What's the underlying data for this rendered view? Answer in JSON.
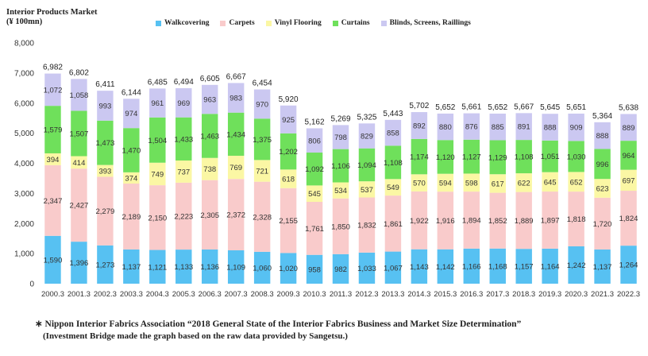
{
  "caption": {
    "line1": "Interior Products Market",
    "line2": "(¥ 100mn)"
  },
  "note": {
    "line1": "∗ Nippon Interior Fabrics Association “2018 General State of the Interior Fabrics Business and Market Size Determination”",
    "line2": "(Investment Bridge made the graph based on the raw data provided by Sangetsu.)"
  },
  "colors": {
    "Walkcovering": "#57c1f2",
    "Carpets": "#f9cbcb",
    "Vinyl Flooring": "#fbf7a4",
    "Curtains": "#6fe05b",
    "Blinds, Screens, Raillings": "#cbc8f1"
  },
  "chart_data": {
    "type": "bar",
    "stacked": true,
    "legend_position": "top",
    "grid": false,
    "ylim": [
      0,
      8000
    ],
    "yticks": [
      "0",
      "1,000",
      "2,000",
      "3,000",
      "4,000",
      "5,000",
      "6,000",
      "7,000",
      "8,000"
    ],
    "categories": [
      "2000.3",
      "2001.3",
      "2002.3",
      "2003.3",
      "2004.3",
      "2005.3",
      "2006.3",
      "2007.3",
      "2008.3",
      "2009.3",
      "2010.3",
      "2011.3",
      "2012.3",
      "2013.3",
      "2014.3",
      "2015.3",
      "2016.3",
      "2017.3",
      "2018.3",
      "2019.3",
      "2020.3",
      "2021.3",
      "2022.3"
    ],
    "totals": [
      6982,
      6802,
      6411,
      6144,
      6485,
      6494,
      6605,
      6667,
      6454,
      5920,
      5162,
      5269,
      5325,
      5443,
      5702,
      5652,
      5661,
      5652,
      5667,
      5645,
      5651,
      5364,
      5638
    ],
    "series": [
      {
        "name": "Walkcovering",
        "values": [
          1590,
          1396,
          1273,
          1137,
          1121,
          1133,
          1136,
          1109,
          1060,
          1020,
          958,
          982,
          1033,
          1067,
          1143,
          1142,
          1166,
          1168,
          1157,
          1164,
          1242,
          1137,
          1264
        ]
      },
      {
        "name": "Carpets",
        "values": [
          2347,
          2427,
          2279,
          2189,
          2150,
          2223,
          2305,
          2372,
          2328,
          2155,
          1761,
          1850,
          1832,
          1861,
          1922,
          1916,
          1894,
          1852,
          1889,
          1897,
          1818,
          1720,
          1824
        ]
      },
      {
        "name": "Vinyl Flooring",
        "values": [
          394,
          414,
          393,
          374,
          749,
          737,
          738,
          769,
          721,
          618,
          545,
          534,
          537,
          549,
          570,
          594,
          598,
          617,
          622,
          645,
          652,
          623,
          697
        ]
      },
      {
        "name": "Curtains",
        "values": [
          1579,
          1507,
          1473,
          1470,
          1504,
          1433,
          1463,
          1434,
          1375,
          1202,
          1092,
          1106,
          1094,
          1108,
          1174,
          1120,
          1127,
          1129,
          1108,
          1051,
          1030,
          996,
          964
        ]
      },
      {
        "name": "Blinds, Screens, Raillings",
        "values": [
          1072,
          1058,
          993,
          974,
          961,
          969,
          963,
          983,
          970,
          925,
          806,
          798,
          829,
          858,
          892,
          880,
          876,
          885,
          891,
          888,
          909,
          888,
          889
        ]
      }
    ]
  }
}
